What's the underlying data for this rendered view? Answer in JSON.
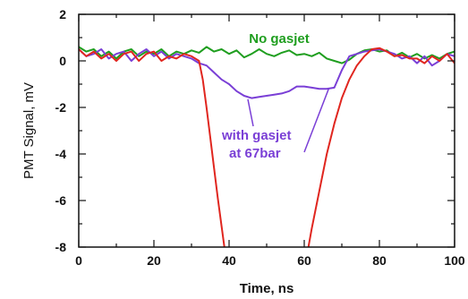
{
  "chart_data": {
    "type": "line",
    "xlabel": "Time, ns",
    "ylabel": "PMT Signal, mV",
    "xlim": [
      0,
      100
    ],
    "ylim": [
      -8,
      2
    ],
    "xticks": [
      0,
      20,
      40,
      60,
      80,
      100
    ],
    "yticks": [
      2,
      0,
      -2,
      -4,
      -6,
      -8
    ],
    "grid": false,
    "legend": "none",
    "series": [
      {
        "color": "#1f9e1f",
        "x": [
          0,
          2,
          4,
          6,
          8,
          10,
          12,
          14,
          16,
          18,
          20,
          22,
          24,
          26,
          28,
          30,
          32,
          34,
          36,
          38,
          40,
          42,
          44,
          46,
          48,
          50,
          52,
          54,
          56,
          58,
          60,
          62,
          64,
          66,
          68,
          70,
          72,
          74,
          76,
          78,
          80,
          82,
          84,
          86,
          88,
          90,
          92,
          94,
          96,
          98,
          100
        ],
        "y": [
          0.6,
          0.4,
          0.5,
          0.2,
          0.4,
          0.1,
          0.4,
          0.5,
          0.2,
          0.4,
          0.3,
          0.5,
          0.2,
          0.4,
          0.3,
          0.45,
          0.35,
          0.6,
          0.4,
          0.5,
          0.3,
          0.45,
          0.15,
          0.3,
          0.5,
          0.3,
          0.2,
          0.35,
          0.45,
          0.25,
          0.3,
          0.2,
          0.35,
          0.1,
          0.0,
          -0.1,
          0.05,
          0.3,
          0.45,
          0.5,
          0.4,
          0.45,
          0.2,
          0.35,
          0.15,
          0.3,
          0.1,
          0.25,
          0.1,
          0.3,
          0.4
        ]
      },
      {
        "color": "#7a3fd6",
        "x": [
          0,
          2,
          4,
          6,
          8,
          10,
          12,
          14,
          16,
          18,
          20,
          22,
          24,
          26,
          28,
          30,
          32,
          34,
          36,
          38,
          40,
          42,
          44,
          46,
          48,
          50,
          52,
          54,
          56,
          58,
          60,
          62,
          64,
          66,
          68,
          70,
          72,
          74,
          76,
          78,
          80,
          82,
          84,
          86,
          88,
          90,
          92,
          94,
          96,
          98,
          100
        ],
        "y": [
          0.5,
          0.2,
          0.3,
          0.5,
          0.1,
          0.3,
          0.4,
          0.0,
          0.3,
          0.5,
          0.2,
          0.4,
          0.1,
          0.3,
          0.2,
          0.1,
          -0.1,
          -0.2,
          -0.5,
          -0.8,
          -1.0,
          -1.3,
          -1.5,
          -1.6,
          -1.55,
          -1.5,
          -1.45,
          -1.4,
          -1.3,
          -1.1,
          -1.1,
          -1.15,
          -1.2,
          -1.2,
          -1.15,
          -0.4,
          0.2,
          0.3,
          0.4,
          0.45,
          0.5,
          0.4,
          0.3,
          0.1,
          0.2,
          -0.1,
          0.2,
          -0.2,
          0.0,
          0.3,
          0.2
        ]
      },
      {
        "color": "#e0261f",
        "x": [
          0,
          2,
          4,
          6,
          8,
          10,
          12,
          14,
          16,
          18,
          20,
          22,
          24,
          26,
          28,
          30,
          32,
          33,
          34,
          35,
          36,
          37,
          38,
          39,
          40,
          60,
          62,
          64,
          66,
          68,
          70,
          72,
          74,
          76,
          78,
          80,
          82,
          84,
          86,
          88,
          90,
          92,
          94,
          96,
          98,
          100
        ],
        "y": [
          0.5,
          0.2,
          0.4,
          0.1,
          0.3,
          0.0,
          0.3,
          0.4,
          0.0,
          0.3,
          0.4,
          0.0,
          0.2,
          0.1,
          0.3,
          0.2,
          0.0,
          -0.8,
          -2.0,
          -3.3,
          -4.6,
          -5.9,
          -7.1,
          -8.3,
          -9.0,
          -9.0,
          -7.2,
          -5.6,
          -4.0,
          -2.7,
          -1.6,
          -0.8,
          -0.2,
          0.2,
          0.5,
          0.55,
          0.4,
          0.2,
          0.25,
          0.1,
          0.1,
          -0.1,
          0.2,
          0.0,
          0.3,
          -0.1
        ]
      }
    ],
    "annotations": [
      {
        "text": "No gasjet",
        "color": "#1f9e1f"
      },
      {
        "text": "with gasjet",
        "color": "#7a3fd6"
      },
      {
        "text": "at 67bar",
        "color": "#7a3fd6"
      }
    ]
  }
}
